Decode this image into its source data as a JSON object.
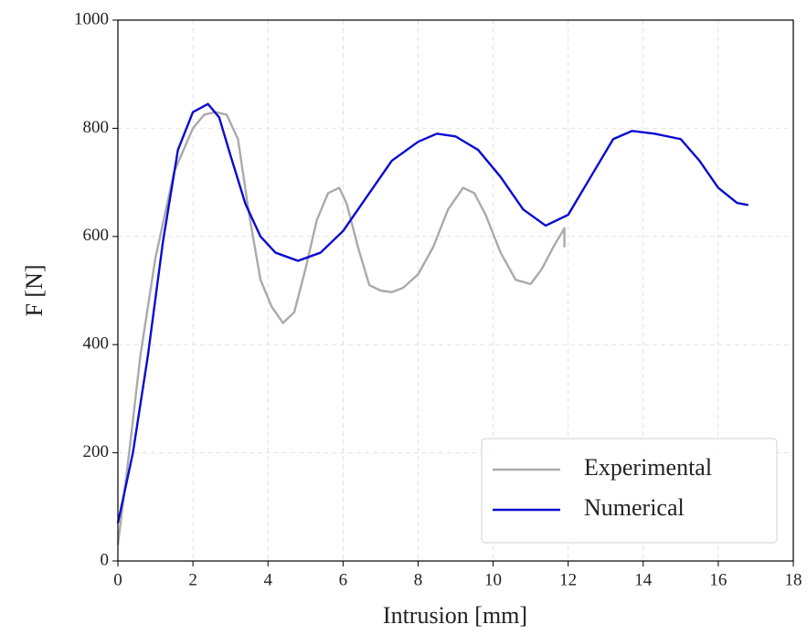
{
  "chart_data": {
    "type": "line",
    "xlabel": "Intrusion [mm]",
    "ylabel": "F [N]",
    "xlim": [
      0,
      18
    ],
    "xticks": [
      0,
      2,
      4,
      6,
      8,
      10,
      12,
      14,
      16,
      18
    ],
    "ylim": [
      0,
      1000
    ],
    "yticks": [
      0,
      200,
      400,
      600,
      800,
      1000
    ],
    "grid": true,
    "legend": "lower right",
    "series": [
      {
        "name": "Experimental",
        "color": "#aaaaaa",
        "x": [
          0,
          0.3,
          0.6,
          1,
          1.5,
          2,
          2.3,
          2.6,
          2.9,
          3.2,
          3.5,
          3.8,
          4.1,
          4.4,
          4.7,
          5.0,
          5.3,
          5.6,
          5.9,
          6.1,
          6.4,
          6.7,
          7.0,
          7.3,
          7.6,
          8.0,
          8.4,
          8.8,
          9.2,
          9.5,
          9.8,
          10.2,
          10.6,
          11.0,
          11.3,
          11.6,
          11.9,
          11.9
        ],
        "values": [
          30,
          200,
          380,
          560,
          720,
          800,
          825,
          830,
          825,
          780,
          640,
          520,
          470,
          440,
          460,
          540,
          630,
          680,
          690,
          660,
          580,
          510,
          500,
          497,
          505,
          530,
          580,
          650,
          690,
          680,
          640,
          570,
          520,
          512,
          540,
          580,
          615,
          580
        ]
      },
      {
        "name": "Numerical",
        "color": "#0a0ad0",
        "x": [
          0,
          0.4,
          0.8,
          1.2,
          1.6,
          2.0,
          2.4,
          2.7,
          3.0,
          3.4,
          3.8,
          4.2,
          4.8,
          5.4,
          6.0,
          6.6,
          7.3,
          8.0,
          8.5,
          9.0,
          9.6,
          10.2,
          10.8,
          11.4,
          12.0,
          12.6,
          13.2,
          13.7,
          14.3,
          15.0,
          15.5,
          16.0,
          16.5,
          16.8
        ],
        "values": [
          70,
          200,
          380,
          590,
          760,
          830,
          845,
          820,
          750,
          660,
          600,
          570,
          555,
          570,
          610,
          670,
          740,
          775,
          790,
          785,
          760,
          710,
          650,
          620,
          640,
          710,
          780,
          795,
          790,
          780,
          740,
          690,
          662,
          658
        ]
      }
    ]
  }
}
